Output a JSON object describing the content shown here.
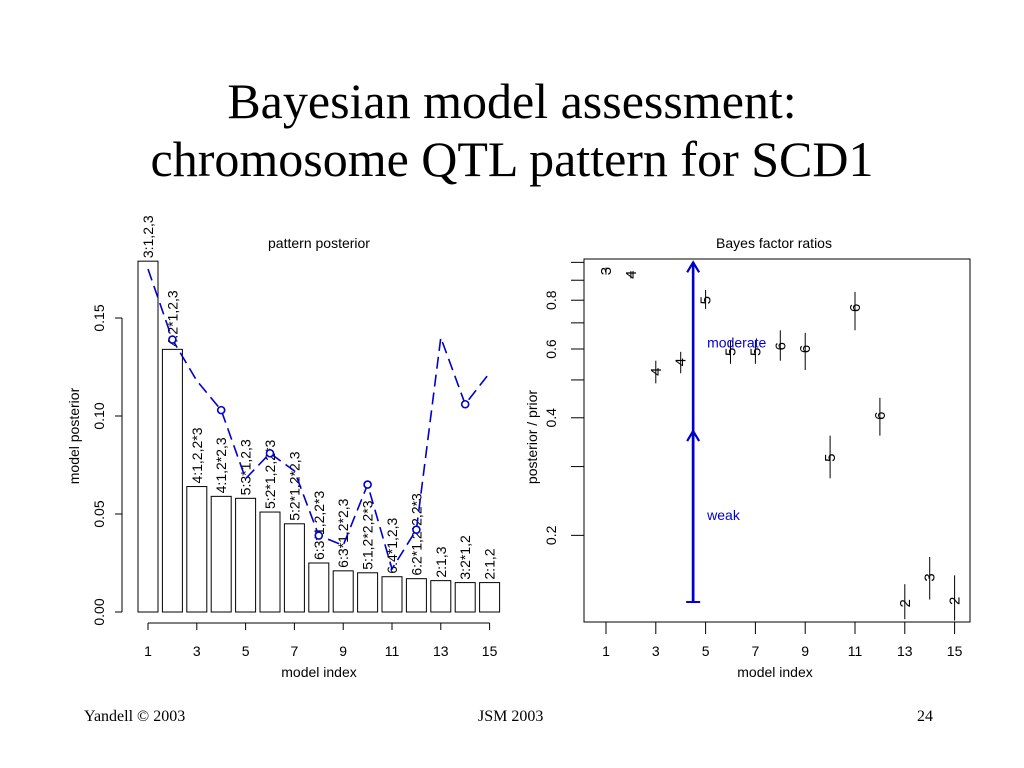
{
  "slide": {
    "title_line1": "Bayesian model assessment:",
    "title_line2": "chromosome QTL pattern for SCD1"
  },
  "footer": {
    "left": "Yandell © 2003",
    "center": "JSM 2003",
    "right": "24"
  },
  "colors": {
    "line": "#0000cc",
    "axis": "#000000"
  },
  "chart_data": [
    {
      "type": "bar",
      "title": "pattern posterior",
      "xlabel": "model index",
      "ylabel": "model posterior",
      "x_ticks": [
        "1",
        "3",
        "5",
        "7",
        "9",
        "11",
        "13",
        "15"
      ],
      "y_ticks": [
        "0.00",
        "0.05",
        "0.10",
        "0.15"
      ],
      "ylim": [
        0,
        0.18
      ],
      "categories": [
        "3:1,2,3",
        "4:2*1,2,3",
        "4:1,2,2*3",
        "4:1,2*2,3",
        "5:3*1,2,3",
        "5:2*1,2,2*3",
        "5:2*1,2*2,3",
        "6:3*1,2,2*3",
        "6:3*1,2*2,3",
        "5:1,2*2,2*3",
        "6:4*1,2,3",
        "6:2*1,2*2,2*3",
        "2:1,3",
        "3:2*1,2",
        "2:1,2"
      ],
      "values": [
        0.179,
        0.134,
        0.064,
        0.059,
        0.058,
        0.051,
        0.045,
        0.025,
        0.021,
        0.02,
        0.018,
        0.017,
        0.016,
        0.015,
        0.015
      ],
      "series": [
        {
          "type": "line",
          "style": "dashed with circle markers (circles at even indices)",
          "values": [
            0.175,
            0.139,
            0.118,
            0.103,
            0.068,
            0.081,
            0.072,
            0.039,
            0.034,
            0.065,
            0.022,
            0.042,
            0.14,
            0.106,
            0.122
          ]
        }
      ],
      "grid": false,
      "legend": "none"
    },
    {
      "type": "scatter",
      "title": "Bayes factor ratios",
      "xlabel": "model index",
      "ylabel": "posterior / prior",
      "x_ticks": [
        "1",
        "3",
        "5",
        "7",
        "9",
        "11",
        "13",
        "15"
      ],
      "y_ticks": [
        "0.2",
        "0.4",
        "0.6",
        "0.8"
      ],
      "y_scale": "log",
      "ylim": [
        0.12,
        1.02
      ],
      "points": [
        {
          "x": 1,
          "y": 0.95,
          "label": "3",
          "lo": 0.93,
          "hi": 0.97
        },
        {
          "x": 2,
          "y": 0.93,
          "label": "4",
          "lo": 0.91,
          "hi": 0.95
        },
        {
          "x": 3,
          "y": 0.525,
          "label": "4",
          "lo": 0.49,
          "hi": 0.56
        },
        {
          "x": 4,
          "y": 0.555,
          "label": "4",
          "lo": 0.52,
          "hi": 0.59
        },
        {
          "x": 5,
          "y": 0.8,
          "label": "5",
          "lo": 0.76,
          "hi": 0.85
        },
        {
          "x": 6,
          "y": 0.59,
          "label": "5",
          "lo": 0.55,
          "hi": 0.63
        },
        {
          "x": 7,
          "y": 0.59,
          "label": "5",
          "lo": 0.55,
          "hi": 0.63
        },
        {
          "x": 8,
          "y": 0.61,
          "label": "6",
          "lo": 0.56,
          "hi": 0.67
        },
        {
          "x": 9,
          "y": 0.6,
          "label": "6",
          "lo": 0.53,
          "hi": 0.66
        },
        {
          "x": 10,
          "y": 0.316,
          "label": "5",
          "lo": 0.28,
          "hi": 0.36
        },
        {
          "x": 11,
          "y": 0.765,
          "label": "6",
          "lo": 0.67,
          "hi": 0.84
        },
        {
          "x": 12,
          "y": 0.405,
          "label": "6",
          "lo": 0.36,
          "hi": 0.45
        },
        {
          "x": 13,
          "y": 0.134,
          "label": "2",
          "lo": 0.122,
          "hi": 0.15
        },
        {
          "x": 14,
          "y": 0.156,
          "label": "3",
          "lo": 0.137,
          "hi": 0.176
        },
        {
          "x": 15,
          "y": 0.136,
          "label": "2",
          "lo": 0.121,
          "hi": 0.158
        }
      ],
      "annotations": [
        {
          "text": "moderate",
          "arrow": {
            "x": 4.5,
            "from": 0.135,
            "to": 1.0
          }
        },
        {
          "text": "weak",
          "arrow": {
            "x": 4.5,
            "from": 0.135,
            "to": 0.37
          }
        }
      ],
      "grid": false,
      "legend": "none"
    }
  ]
}
